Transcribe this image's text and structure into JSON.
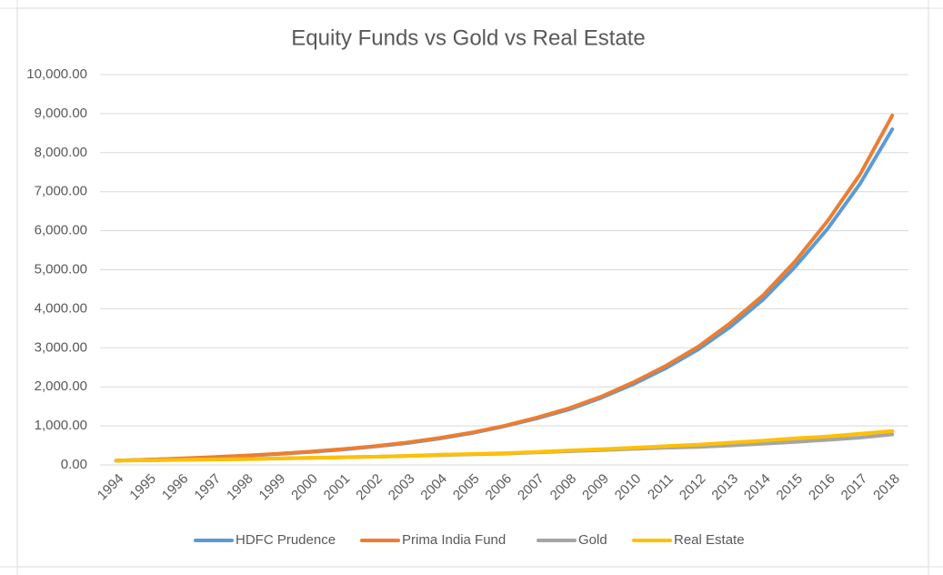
{
  "chart_data": {
    "type": "line",
    "title": "Equity Funds vs Gold vs Real Estate",
    "categories": [
      "1994",
      "1995",
      "1996",
      "1997",
      "1998",
      "1999",
      "2000",
      "2001",
      "2002",
      "2003",
      "2004",
      "2005",
      "2006",
      "2007",
      "2008",
      "2009",
      "2010",
      "2011",
      "2012",
      "2013",
      "2014",
      "2015",
      "2016",
      "2017",
      "2018"
    ],
    "series": [
      {
        "name": "HDFC Prudence",
        "color": "#5b9bd5",
        "values": [
          110,
          132,
          160,
          195,
          235,
          280,
          330,
          395,
          470,
          560,
          675,
          815,
          990,
          1190,
          1420,
          1720,
          2070,
          2480,
          2960,
          3540,
          4230,
          5080,
          6050,
          7200,
          8600
        ]
      },
      {
        "name": "Prima India Fund",
        "color": "#ed7d31",
        "values": [
          110,
          135,
          165,
          200,
          240,
          285,
          340,
          405,
          480,
          575,
          690,
          830,
          1000,
          1210,
          1450,
          1750,
          2120,
          2540,
          3030,
          3640,
          4340,
          5220,
          6250,
          7440,
          8950
        ]
      },
      {
        "name": "Gold",
        "color": "#a5a5a5",
        "values": [
          110,
          120,
          130,
          140,
          150,
          165,
          180,
          195,
          210,
          230,
          250,
          270,
          290,
          320,
          350,
          380,
          410,
          440,
          460,
          500,
          540,
          590,
          640,
          700,
          780
        ]
      },
      {
        "name": "Real Estate",
        "color": "#ffc000",
        "values": [
          110,
          120,
          130,
          140,
          150,
          165,
          180,
          195,
          210,
          230,
          260,
          280,
          300,
          330,
          370,
          400,
          440,
          480,
          520,
          570,
          620,
          680,
          730,
          800,
          870
        ]
      }
    ],
    "ylim": [
      0,
      10000
    ],
    "yticks": [
      {
        "value": 0,
        "label": "0.00"
      },
      {
        "value": 1000,
        "label": "1,000.00"
      },
      {
        "value": 2000,
        "label": "2,000.00"
      },
      {
        "value": 3000,
        "label": "3,000.00"
      },
      {
        "value": 4000,
        "label": "4,000.00"
      },
      {
        "value": 5000,
        "label": "5,000.00"
      },
      {
        "value": 6000,
        "label": "6,000.00"
      },
      {
        "value": 7000,
        "label": "7,000.00"
      },
      {
        "value": 8000,
        "label": "8,000.00"
      },
      {
        "value": 9000,
        "label": "9,000.00"
      },
      {
        "value": 10000,
        "label": "10,000.00"
      }
    ],
    "grid": true,
    "legend": "bottom"
  }
}
